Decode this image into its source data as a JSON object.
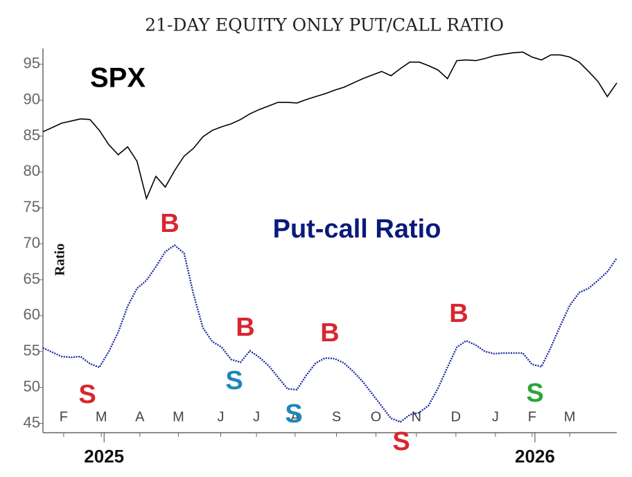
{
  "chart_data": {
    "type": "line",
    "title": "21-DAY EQUITY ONLY PUT/CALL RATIO",
    "y_label": "Ratio",
    "annotations": [
      {
        "text": "SPX",
        "color": "#000000"
      },
      {
        "text": "Put-call Ratio",
        "color": "#0b1a7a"
      }
    ],
    "signals": [
      {
        "label": "S",
        "color": "#d9262e"
      },
      {
        "label": "B",
        "color": "#d9262e"
      },
      {
        "label": "S",
        "color": "#1f86b8"
      },
      {
        "label": "B",
        "color": "#d9262e"
      },
      {
        "label": "S",
        "color": "#1f86b8"
      },
      {
        "label": "B",
        "color": "#d9262e"
      },
      {
        "label": "S",
        "color": "#d9262e"
      },
      {
        "label": "B",
        "color": "#d9262e"
      },
      {
        "label": "S",
        "color": "#2ea43a"
      }
    ],
    "xlim": [
      0,
      61
    ],
    "xticks": [
      {
        "value": 2.2,
        "label": "F"
      },
      {
        "value": 6.2,
        "label": "M"
      },
      {
        "value": 10.3,
        "label": "A"
      },
      {
        "value": 14.4,
        "label": "M"
      },
      {
        "value": 18.9,
        "label": "J"
      },
      {
        "value": 22.7,
        "label": "J"
      },
      {
        "value": 26.8,
        "label": "A"
      },
      {
        "value": 31.2,
        "label": "S"
      },
      {
        "value": 35.4,
        "label": "O"
      },
      {
        "value": 39.7,
        "label": "N"
      },
      {
        "value": 43.9,
        "label": "D"
      },
      {
        "value": 48.1,
        "label": "J"
      },
      {
        "value": 52.0,
        "label": "F"
      },
      {
        "value": 56.0,
        "label": "M"
      }
    ],
    "year_ticks": [
      {
        "value": 6.5,
        "label": "2025"
      },
      {
        "value": 52.3,
        "label": "2026"
      }
    ],
    "ylim": [
      43.7,
      97.2
    ],
    "yticks": [
      45,
      50,
      55,
      60,
      65,
      70,
      75,
      80,
      85,
      90,
      95
    ],
    "series": [
      {
        "name": "SPX",
        "color": "#000000",
        "values": [
          85.6,
          86.2,
          86.8,
          87.1,
          87.4,
          87.3,
          85.8,
          83.8,
          82.4,
          83.5,
          81.5,
          76.3,
          79.4,
          77.9,
          80.2,
          82.2,
          83.3,
          84.9,
          85.8,
          86.3,
          86.7,
          87.3,
          88.1,
          88.7,
          89.2,
          89.7,
          89.7,
          89.6,
          90.1,
          90.5,
          90.9,
          91.4,
          91.8,
          92.4,
          93.0,
          93.5,
          94.0,
          93.4,
          94.4,
          95.3,
          95.3,
          94.8,
          94.2,
          93.0,
          95.5,
          95.6,
          95.5,
          95.8,
          96.2,
          96.4,
          96.6,
          96.7,
          96.0,
          95.6,
          96.3,
          96.3,
          96.0,
          95.3,
          94.0,
          92.6,
          90.5,
          92.4
        ]
      },
      {
        "name": "Put-call Ratio",
        "color": "#1a2aa0",
        "values": [
          55.5,
          54.9,
          54.3,
          54.2,
          54.3,
          53.3,
          52.8,
          55.0,
          57.7,
          61.3,
          63.8,
          64.9,
          66.8,
          68.9,
          69.8,
          68.7,
          63.0,
          58.3,
          56.4,
          55.6,
          53.9,
          53.5,
          55.1,
          54.2,
          53.0,
          51.4,
          49.8,
          49.7,
          51.7,
          53.4,
          54.1,
          54.0,
          53.4,
          52.2,
          50.8,
          49.1,
          47.4,
          45.7,
          45.2,
          46.2,
          46.5,
          47.5,
          49.9,
          52.8,
          55.6,
          56.5,
          55.9,
          55.0,
          54.7,
          54.8,
          54.8,
          54.8,
          53.2,
          52.9,
          55.6,
          58.6,
          61.4,
          63.2,
          63.8,
          64.9,
          66.1,
          68.0
        ]
      }
    ]
  }
}
